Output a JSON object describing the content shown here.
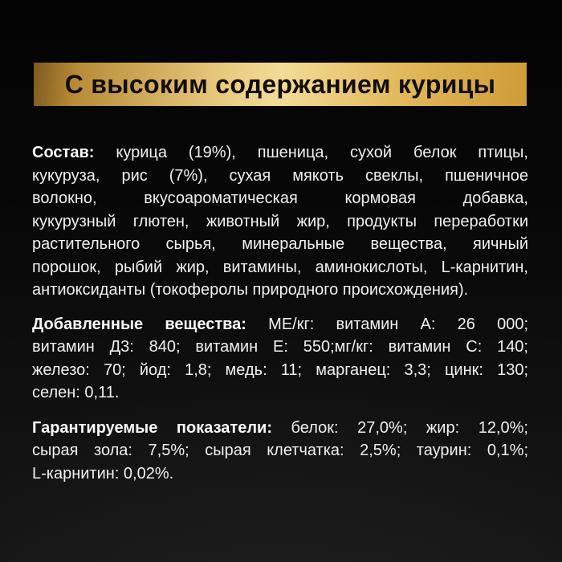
{
  "banner": {
    "title": "С высоким содержанием курицы"
  },
  "colors": {
    "background": "#0a0a0a",
    "banner_gold_light": "#f2dc96",
    "banner_gold_dark": "#7d5a1d",
    "banner_text": "#120d02",
    "body_text": "#f0f0f0"
  },
  "sections": {
    "composition": {
      "heading": "Состав:",
      "heading_rest": "курица (19%), пшеница, сухой белок птицы,",
      "lines": [
        "кукуруза, рис (7%), сухая мякоть свеклы, пшеничное",
        "волокно, вкусоароматическая кормовая добавка,",
        "кукурузный глютен, животный жир, продукты переработки",
        "растительного сырья, минеральные вещества, яичный",
        "порошок, рыбий жир, витамины, аминокислоты, L-карнитин,",
        "антиоксиданты (токоферолы природного происхождения)."
      ]
    },
    "additives": {
      "heading": "Добавленные вещества:",
      "heading_rest": "МЕ/кг: витамин А: 26 000;",
      "lines": [
        "витамин Д3: 840; витамин Е: 550;мг/кг: витамин С: 140;",
        "железо: 70; йод: 1,8; медь: 11; марганец: 3,3; цинк: 130;",
        "селен: 0,11."
      ]
    },
    "guaranteed": {
      "heading": "Гарантируемые показатели:",
      "heading_rest": "белок: 27,0%; жир: 12,0%;",
      "lines": [
        "сырая зола: 7,5%; сырая клетчатка: 2,5%; таурин: 0,1%;",
        "L-карнитин: 0,02%."
      ]
    }
  }
}
